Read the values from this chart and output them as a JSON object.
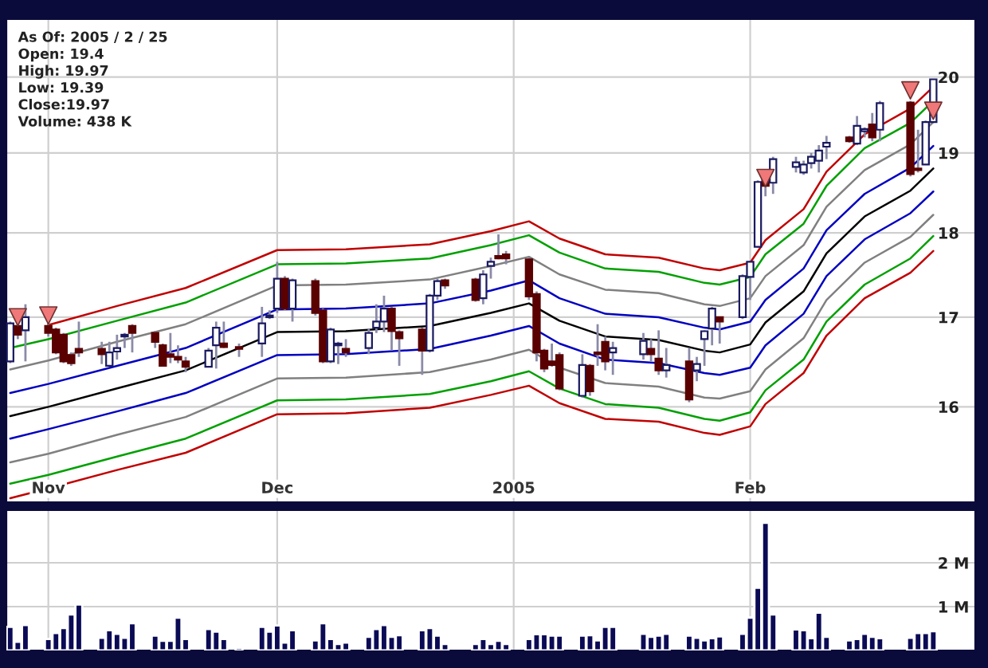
{
  "chart_data": [
    {
      "type": "candlestick",
      "log": "y",
      "grid": true,
      "annotations": [
        "As Of: 2005 / 2 / 25",
        "Open: 19.4",
        "High: 19.97",
        "Low: 19.39",
        "Close:19.97",
        "Volume: 438 K"
      ],
      "xlim": [
        "2004-10-26T12:00",
        "2005-03-02T12:00"
      ],
      "ylim": [
        15,
        20.8
      ],
      "xticks": [
        {
          "value": "2004-11-01",
          "label": "Nov"
        },
        {
          "value": "2004-12-01",
          "label": "Dec"
        },
        {
          "value": "2005-01-01",
          "label": "2005"
        },
        {
          "value": "2005-02-01",
          "label": "Feb"
        }
      ],
      "yticks": [
        16,
        17,
        18,
        19,
        20
      ],
      "x": [
        "2004-10-27",
        "2004-10-28",
        "2004-10-29",
        "2004-11-01",
        "2004-11-02",
        "2004-11-03",
        "2004-11-04",
        "2004-11-05",
        "2004-11-08",
        "2004-11-09",
        "2004-11-10",
        "2004-11-11",
        "2004-11-12",
        "2004-11-15",
        "2004-11-16",
        "2004-11-17",
        "2004-11-18",
        "2004-11-19",
        "2004-11-22",
        "2004-11-23",
        "2004-11-24",
        "2004-11-26",
        "2004-11-29",
        "2004-11-30",
        "2004-12-01",
        "2004-12-02",
        "2004-12-03",
        "2004-12-06",
        "2004-12-07",
        "2004-12-08",
        "2004-12-09",
        "2004-12-10",
        "2004-12-13",
        "2004-12-14",
        "2004-12-15",
        "2004-12-16",
        "2004-12-17",
        "2004-12-20",
        "2004-12-21",
        "2004-12-22",
        "2004-12-23",
        "2004-12-27",
        "2004-12-28",
        "2004-12-29",
        "2004-12-30",
        "2004-12-31",
        "2005-01-03",
        "2005-01-04",
        "2005-01-05",
        "2005-01-06",
        "2005-01-07",
        "2005-01-10",
        "2005-01-11",
        "2005-01-12",
        "2005-01-13",
        "2005-01-14",
        "2005-01-18",
        "2005-01-19",
        "2005-01-20",
        "2005-01-21",
        "2005-01-24",
        "2005-01-25",
        "2005-01-26",
        "2005-01-27",
        "2005-01-28",
        "2005-01-31",
        "2005-02-01",
        "2005-02-02",
        "2005-02-03",
        "2005-02-04",
        "2005-02-07",
        "2005-02-08",
        "2005-02-09",
        "2005-02-10",
        "2005-02-11",
        "2005-02-14",
        "2005-02-15",
        "2005-02-16",
        "2005-02-17",
        "2005-02-18",
        "2005-02-22",
        "2005-02-23",
        "2005-02-24",
        "2005-02-25"
      ],
      "ohlc": [
        [
          16.5,
          16.95,
          16.48,
          16.93
        ],
        [
          16.9,
          16.95,
          16.75,
          16.8
        ],
        [
          16.85,
          17.15,
          16.5,
          17.0
        ],
        [
          16.9,
          17.0,
          16.78,
          16.82
        ],
        [
          16.86,
          16.88,
          16.58,
          16.6
        ],
        [
          16.8,
          16.82,
          16.48,
          16.5
        ],
        [
          16.57,
          16.6,
          16.45,
          16.48
        ],
        [
          16.64,
          16.95,
          16.55,
          16.6
        ],
        [
          16.64,
          16.72,
          16.47,
          16.58
        ],
        [
          16.45,
          16.72,
          16.45,
          16.6
        ],
        [
          16.61,
          16.8,
          16.52,
          16.65
        ],
        [
          16.78,
          16.82,
          16.65,
          16.8
        ],
        [
          16.9,
          16.92,
          16.6,
          16.82
        ],
        [
          16.82,
          16.84,
          16.65,
          16.72
        ],
        [
          16.68,
          16.7,
          16.45,
          16.45
        ],
        [
          16.58,
          16.82,
          16.48,
          16.55
        ],
        [
          16.55,
          16.68,
          16.48,
          16.52
        ],
        [
          16.5,
          16.55,
          16.38,
          16.44
        ],
        [
          16.44,
          16.65,
          16.44,
          16.62
        ],
        [
          16.68,
          16.95,
          16.42,
          16.88
        ],
        [
          16.7,
          16.95,
          16.65,
          16.66
        ],
        [
          16.66,
          16.7,
          16.55,
          16.64
        ],
        [
          16.7,
          17.12,
          16.55,
          16.93
        ],
        [
          17.0,
          17.08,
          16.98,
          17.02
        ],
        [
          17.1,
          17.65,
          17.05,
          17.45
        ],
        [
          17.45,
          17.48,
          17.08,
          17.1
        ],
        [
          17.1,
          17.45,
          16.95,
          17.43
        ],
        [
          17.42,
          17.45,
          17.02,
          17.05
        ],
        [
          17.08,
          17.1,
          16.48,
          16.5
        ],
        [
          16.5,
          16.88,
          16.48,
          16.86
        ],
        [
          16.68,
          16.72,
          16.47,
          16.7
        ],
        [
          16.64,
          16.75,
          16.55,
          16.6
        ],
        [
          16.65,
          16.87,
          16.58,
          16.82
        ],
        [
          16.88,
          17.15,
          16.82,
          16.95
        ],
        [
          16.95,
          17.25,
          16.83,
          17.1
        ],
        [
          17.1,
          17.12,
          16.62,
          16.84
        ],
        [
          16.83,
          16.85,
          16.45,
          16.76
        ],
        [
          16.86,
          16.88,
          16.35,
          16.62
        ],
        [
          16.62,
          17.27,
          16.6,
          17.25
        ],
        [
          17.25,
          17.45,
          17.2,
          17.42
        ],
        [
          17.43,
          17.45,
          17.33,
          17.37
        ],
        [
          17.44,
          17.46,
          17.18,
          17.2
        ],
        [
          17.22,
          17.55,
          17.15,
          17.5
        ],
        [
          17.6,
          17.7,
          17.45,
          17.65
        ],
        [
          17.72,
          17.98,
          17.68,
          17.69
        ],
        [
          17.74,
          17.78,
          17.62,
          17.69
        ],
        [
          17.68,
          17.7,
          17.2,
          17.24
        ],
        [
          17.27,
          17.3,
          16.5,
          16.6
        ],
        [
          16.62,
          16.64,
          16.38,
          16.42
        ],
        [
          16.5,
          16.7,
          16.44,
          16.46
        ],
        [
          16.57,
          16.6,
          16.18,
          16.2
        ],
        [
          16.12,
          16.58,
          16.1,
          16.46
        ],
        [
          16.45,
          16.47,
          16.12,
          16.17
        ],
        [
          16.6,
          16.92,
          16.45,
          16.58
        ],
        [
          16.72,
          16.78,
          16.4,
          16.5
        ],
        [
          16.6,
          16.72,
          16.35,
          16.65
        ],
        [
          16.58,
          16.82,
          16.52,
          16.73
        ],
        [
          16.64,
          16.75,
          16.5,
          16.58
        ],
        [
          16.53,
          16.85,
          16.35,
          16.4
        ],
        [
          16.4,
          16.65,
          16.32,
          16.46
        ],
        [
          16.5,
          16.65,
          16.05,
          16.08
        ],
        [
          16.4,
          16.55,
          16.28,
          16.47
        ],
        [
          16.75,
          16.85,
          16.45,
          16.84
        ],
        [
          16.87,
          17.12,
          16.68,
          17.1
        ],
        [
          17.0,
          17.0,
          16.7,
          16.95
        ],
        [
          17.0,
          17.5,
          16.98,
          17.48
        ],
        [
          17.47,
          17.66,
          17.2,
          17.65
        ],
        [
          17.83,
          18.65,
          17.82,
          18.63
        ],
        [
          18.65,
          18.68,
          18.45,
          18.58
        ],
        [
          18.62,
          18.95,
          18.48,
          18.92
        ],
        [
          18.82,
          18.95,
          18.75,
          18.88
        ],
        [
          18.75,
          18.9,
          18.72,
          18.85
        ],
        [
          18.87,
          19.0,
          18.8,
          18.95
        ],
        [
          18.9,
          19.1,
          18.75,
          19.03
        ],
        [
          19.08,
          19.22,
          18.92,
          19.13
        ],
        [
          19.2,
          19.22,
          19.13,
          19.15
        ],
        [
          19.12,
          19.48,
          19.1,
          19.35
        ],
        [
          19.28,
          19.33,
          19.2,
          19.31
        ],
        [
          19.37,
          19.52,
          19.15,
          19.2
        ],
        [
          19.3,
          19.68,
          19.15,
          19.65
        ],
        [
          19.66,
          19.68,
          18.7,
          18.73
        ],
        [
          18.8,
          19.3,
          18.75,
          18.78
        ],
        [
          18.85,
          19.42,
          18.85,
          19.4
        ],
        [
          19.4,
          19.97,
          19.39,
          19.97
        ]
      ],
      "series": [
        {
          "type": "line",
          "color": "#c00000",
          "x": [
            "2004-11-01",
            "2004-11-10",
            "2004-11-19",
            "2004-12-01",
            "2004-12-10",
            "2004-12-21",
            "2004-12-29",
            "2005-01-03",
            "2005-01-07",
            "2005-01-13",
            "2005-01-20",
            "2005-01-26",
            "2005-01-28",
            "2005-02-01",
            "2005-02-03",
            "2005-02-08",
            "2005-02-11",
            "2005-02-16",
            "2005-02-22",
            "2005-02-25"
          ],
          "values": [
            16.91,
            17.13,
            17.34,
            17.79,
            17.8,
            17.86,
            18.02,
            18.14,
            17.93,
            17.74,
            17.7,
            17.57,
            17.55,
            17.64,
            17.91,
            18.29,
            18.76,
            19.24,
            19.58,
            19.87
          ]
        },
        {
          "type": "line",
          "color": "#00a000",
          "x": [
            "2004-10-27",
            "2004-11-01",
            "2004-11-10",
            "2004-11-19",
            "2004-12-01",
            "2004-12-10",
            "2004-12-21",
            "2004-12-29",
            "2005-01-03",
            "2005-01-07",
            "2005-01-13",
            "2005-01-20",
            "2005-01-26",
            "2005-01-28",
            "2005-02-01",
            "2005-02-03",
            "2005-02-08",
            "2005-02-11",
            "2005-02-16",
            "2005-02-22",
            "2005-02-25"
          ],
          "values": [
            16.65,
            16.75,
            16.96,
            17.17,
            17.62,
            17.63,
            17.69,
            17.85,
            17.97,
            17.76,
            17.57,
            17.53,
            17.4,
            17.38,
            17.47,
            17.74,
            18.11,
            18.58,
            19.06,
            19.39,
            19.68
          ]
        },
        {
          "type": "line",
          "color": "#808080",
          "x": [
            "2004-10-27",
            "2004-11-01",
            "2004-11-10",
            "2004-11-19",
            "2004-12-01",
            "2004-12-10",
            "2004-12-21",
            "2004-12-29",
            "2005-01-03",
            "2005-01-07",
            "2005-01-13",
            "2005-01-20",
            "2005-01-26",
            "2005-01-28",
            "2005-02-01",
            "2005-02-03",
            "2005-02-08",
            "2005-02-11",
            "2005-02-16",
            "2005-02-22",
            "2005-02-25"
          ],
          "values": [
            16.41,
            16.51,
            16.72,
            16.92,
            17.37,
            17.38,
            17.44,
            17.6,
            17.71,
            17.5,
            17.32,
            17.28,
            17.15,
            17.13,
            17.22,
            17.48,
            17.85,
            18.32,
            18.78,
            19.11,
            19.4
          ]
        },
        {
          "type": "line",
          "color": "#0000c0",
          "x": [
            "2004-10-27",
            "2004-11-01",
            "2004-11-10",
            "2004-11-19",
            "2004-12-01",
            "2004-12-10",
            "2004-12-21",
            "2004-12-29",
            "2005-01-03",
            "2005-01-07",
            "2005-01-13",
            "2005-01-20",
            "2005-01-26",
            "2005-01-28",
            "2005-02-01",
            "2005-02-03",
            "2005-02-08",
            "2005-02-11",
            "2005-02-16",
            "2005-02-22",
            "2005-02-25"
          ],
          "values": [
            16.15,
            16.25,
            16.45,
            16.65,
            17.09,
            17.1,
            17.16,
            17.31,
            17.43,
            17.22,
            17.04,
            17.0,
            16.88,
            16.86,
            16.95,
            17.2,
            17.57,
            18.03,
            18.48,
            18.81,
            19.09
          ]
        },
        {
          "type": "line",
          "color": "#000000",
          "x": [
            "2004-10-27",
            "2004-11-01",
            "2004-11-10",
            "2004-11-19",
            "2004-12-01",
            "2004-12-10",
            "2004-12-21",
            "2004-12-29",
            "2005-01-03",
            "2005-01-07",
            "2005-01-13",
            "2005-01-20",
            "2005-01-26",
            "2005-01-28",
            "2005-02-01",
            "2005-02-03",
            "2005-02-08",
            "2005-02-11",
            "2005-02-16",
            "2005-02-22",
            "2005-02-25"
          ],
          "values": [
            15.9,
            16.0,
            16.2,
            16.4,
            16.83,
            16.84,
            16.9,
            17.05,
            17.16,
            16.96,
            16.78,
            16.74,
            16.62,
            16.6,
            16.69,
            16.94,
            17.3,
            17.75,
            18.2,
            18.52,
            18.8
          ]
        },
        {
          "type": "line",
          "color": "#0000c0",
          "x": [
            "2004-10-27",
            "2004-11-01",
            "2004-11-10",
            "2004-11-19",
            "2004-12-01",
            "2004-12-10",
            "2004-12-21",
            "2004-12-29",
            "2005-01-03",
            "2005-01-07",
            "2005-01-13",
            "2005-01-20",
            "2005-01-26",
            "2005-01-28",
            "2005-02-01",
            "2005-02-03",
            "2005-02-08",
            "2005-02-11",
            "2005-02-16",
            "2005-02-22",
            "2005-02-25"
          ],
          "values": [
            15.66,
            15.76,
            15.95,
            16.15,
            16.57,
            16.58,
            16.64,
            16.79,
            16.9,
            16.7,
            16.52,
            16.48,
            16.37,
            16.35,
            16.43,
            16.68,
            17.04,
            17.48,
            17.92,
            18.24,
            18.51
          ]
        },
        {
          "type": "line",
          "color": "#808080",
          "x": [
            "2004-10-27",
            "2004-11-01",
            "2004-11-10",
            "2004-11-19",
            "2004-12-01",
            "2004-12-10",
            "2004-12-21",
            "2004-12-29",
            "2005-01-03",
            "2005-01-07",
            "2005-01-13",
            "2005-01-20",
            "2005-01-26",
            "2005-01-28",
            "2005-02-01",
            "2005-02-03",
            "2005-02-08",
            "2005-02-11",
            "2005-02-16",
            "2005-02-22",
            "2005-02-25"
          ],
          "values": [
            15.41,
            15.5,
            15.7,
            15.89,
            16.31,
            16.32,
            16.38,
            16.52,
            16.63,
            16.43,
            16.26,
            16.22,
            16.1,
            16.09,
            16.17,
            16.41,
            16.76,
            17.2,
            17.64,
            17.95,
            18.22
          ]
        },
        {
          "type": "line",
          "color": "#00a000",
          "x": [
            "2004-10-27",
            "2004-11-01",
            "2004-11-10",
            "2004-11-19",
            "2004-12-01",
            "2004-12-10",
            "2004-12-21",
            "2004-12-29",
            "2005-01-03",
            "2005-01-07",
            "2005-01-13",
            "2005-01-20",
            "2005-01-26",
            "2005-01-28",
            "2005-02-01",
            "2005-02-03",
            "2005-02-08",
            "2005-02-11",
            "2005-02-16",
            "2005-02-22",
            "2005-02-25"
          ],
          "values": [
            15.19,
            15.28,
            15.47,
            15.66,
            16.07,
            16.08,
            16.14,
            16.28,
            16.39,
            16.2,
            16.03,
            15.99,
            15.87,
            15.85,
            15.94,
            16.18,
            16.52,
            16.95,
            17.38,
            17.69,
            17.96
          ]
        },
        {
          "type": "line",
          "color": "#c00000",
          "x": [
            "2004-10-27",
            "2004-11-01",
            "2004-11-10",
            "2004-11-19",
            "2004-12-01",
            "2004-12-10",
            "2004-12-21",
            "2004-12-29",
            "2005-01-03",
            "2005-01-07",
            "2005-01-13",
            "2005-01-20",
            "2005-01-26",
            "2005-01-28",
            "2005-02-01",
            "2005-02-03",
            "2005-02-08",
            "2005-02-11",
            "2005-02-16",
            "2005-02-22",
            "2005-02-25"
          ],
          "values": [
            15.04,
            15.14,
            15.33,
            15.51,
            15.92,
            15.93,
            15.99,
            16.13,
            16.23,
            16.04,
            15.87,
            15.84,
            15.72,
            15.7,
            15.79,
            16.03,
            16.37,
            16.79,
            17.22,
            17.52,
            17.78
          ]
        },
        {
          "type": "scatter",
          "marker": "triangle",
          "color": "#f07878",
          "x": [
            "2004-10-28",
            "2004-11-01",
            "2005-02-03",
            "2005-02-22",
            "2005-02-25"
          ],
          "values": [
            17.0,
            17.02,
            18.68,
            19.82,
            19.55
          ]
        }
      ]
    },
    {
      "type": "bar",
      "grid": true,
      "tick_labels": "y",
      "color": "#0a0a55",
      "xlim": [
        "2004-10-26T12:00",
        "2005-03-02T12:00"
      ],
      "ylim": [
        0,
        3.2
      ],
      "xticks": [
        {
          "value": "2004-11-01",
          "label": null
        },
        {
          "value": "2004-12-01",
          "label": null
        },
        {
          "value": "2005-01-01",
          "label": null
        },
        {
          "value": "2005-02-01",
          "label": null
        }
      ],
      "yticks": [
        {
          "value": 1,
          "label": "1 M"
        },
        {
          "value": 2,
          "label": "2 M"
        }
      ],
      "x": [
        "2004-10-27",
        "2004-10-28",
        "2004-10-29",
        "2004-11-01",
        "2004-11-02",
        "2004-11-03",
        "2004-11-04",
        "2004-11-05",
        "2004-11-08",
        "2004-11-09",
        "2004-11-10",
        "2004-11-11",
        "2004-11-12",
        "2004-11-15",
        "2004-11-16",
        "2004-11-17",
        "2004-11-18",
        "2004-11-19",
        "2004-11-22",
        "2004-11-23",
        "2004-11-24",
        "2004-11-26",
        "2004-11-29",
        "2004-11-30",
        "2004-12-01",
        "2004-12-02",
        "2004-12-03",
        "2004-12-06",
        "2004-12-07",
        "2004-12-08",
        "2004-12-09",
        "2004-12-10",
        "2004-12-13",
        "2004-12-14",
        "2004-12-15",
        "2004-12-16",
        "2004-12-17",
        "2004-12-20",
        "2004-12-21",
        "2004-12-22",
        "2004-12-23",
        "2004-12-27",
        "2004-12-28",
        "2004-12-29",
        "2004-12-30",
        "2004-12-31",
        "2005-01-03",
        "2005-01-04",
        "2005-01-05",
        "2005-01-06",
        "2005-01-07",
        "2005-01-10",
        "2005-01-11",
        "2005-01-12",
        "2005-01-13",
        "2005-01-14",
        "2005-01-18",
        "2005-01-19",
        "2005-01-20",
        "2005-01-21",
        "2005-01-24",
        "2005-01-25",
        "2005-01-26",
        "2005-01-27",
        "2005-01-28",
        "2005-01-31",
        "2005-02-01",
        "2005-02-02",
        "2005-02-03",
        "2005-02-04",
        "2005-02-07",
        "2005-02-08",
        "2005-02-09",
        "2005-02-10",
        "2005-02-11",
        "2005-02-14",
        "2005-02-15",
        "2005-02-16",
        "2005-02-17",
        "2005-02-18",
        "2005-02-22",
        "2005-02-23",
        "2005-02-24",
        "2005-02-25"
      ],
      "values": [
        0.54,
        0.2,
        0.58,
        0.26,
        0.4,
        0.51,
        0.82,
        1.05,
        0.29,
        0.46,
        0.38,
        0.29,
        0.62,
        0.34,
        0.22,
        0.22,
        0.75,
        0.26,
        0.49,
        0.43,
        0.26,
        0.06,
        0.54,
        0.43,
        0.57,
        0.18,
        0.46,
        0.23,
        0.62,
        0.26,
        0.15,
        0.18,
        0.31,
        0.49,
        0.58,
        0.31,
        0.35,
        0.46,
        0.51,
        0.34,
        0.15,
        0.15,
        0.26,
        0.15,
        0.22,
        0.15,
        0.26,
        0.37,
        0.37,
        0.34,
        0.34,
        0.34,
        0.35,
        0.23,
        0.54,
        0.54,
        0.38,
        0.31,
        0.34,
        0.38,
        0.34,
        0.29,
        0.23,
        0.28,
        0.32,
        0.38,
        0.75,
        1.43,
        2.91,
        0.82,
        0.48,
        0.46,
        0.28,
        0.86,
        0.31,
        0.23,
        0.26,
        0.38,
        0.31,
        0.28,
        0.29,
        0.4,
        0.4,
        0.44
      ]
    }
  ]
}
